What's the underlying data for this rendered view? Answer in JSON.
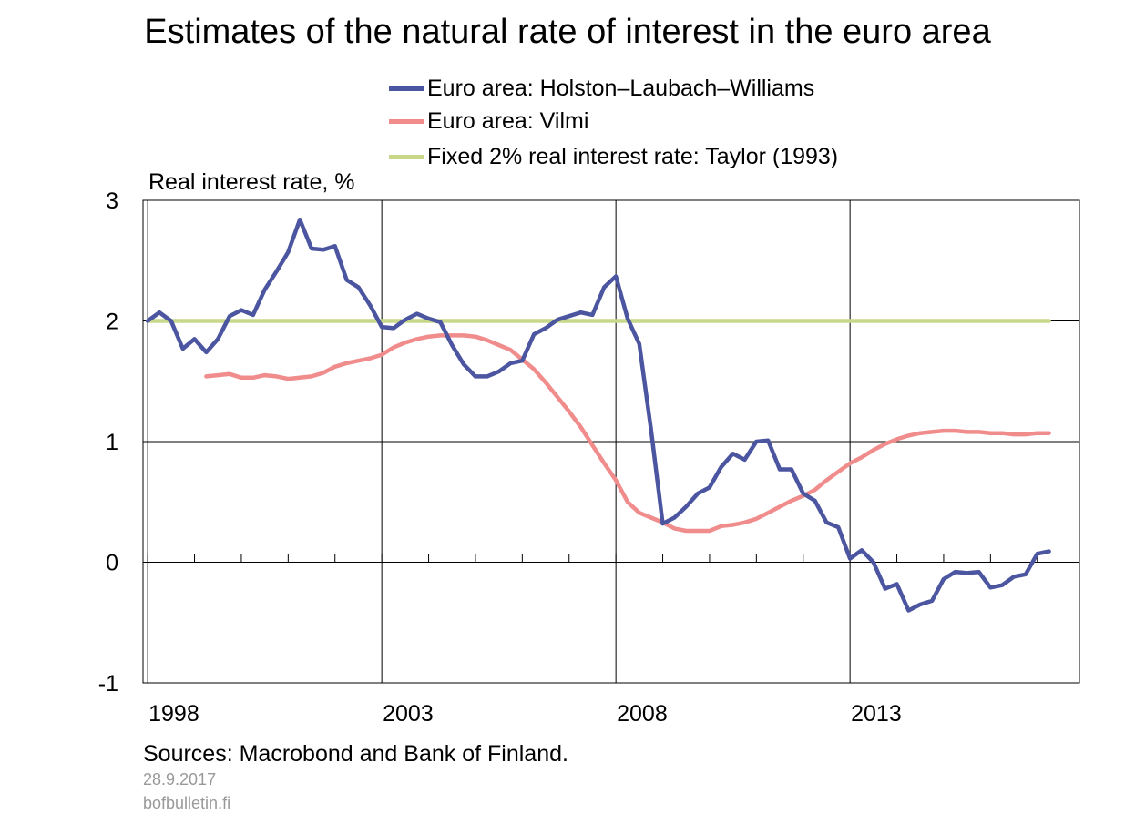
{
  "chart_data": {
    "type": "line",
    "title": "Estimates of the natural rate of interest in the euro area",
    "ylabel": "Real interest rate, %",
    "ylim": [
      -1,
      3
    ],
    "yticks": [
      3,
      2,
      1,
      0,
      -1
    ],
    "xlim": [
      1997.9,
      2017.9
    ],
    "xticks": [
      1998,
      2003,
      2008,
      2013
    ],
    "grid": true,
    "legend_position": "top",
    "series": [
      {
        "name": "Euro area: Holston–Laubach–Williams",
        "color": "#4b55a0",
        "x": [
          1998.0,
          1998.25,
          1998.5,
          1998.75,
          1999.0,
          1999.25,
          1999.5,
          1999.75,
          2000.0,
          2000.25,
          2000.5,
          2000.75,
          2001.0,
          2001.25,
          2001.5,
          2001.75,
          2002.0,
          2002.25,
          2002.5,
          2002.75,
          2003.0,
          2003.25,
          2003.5,
          2003.75,
          2004.0,
          2004.25,
          2004.5,
          2004.75,
          2005.0,
          2005.25,
          2005.5,
          2005.75,
          2006.0,
          2006.25,
          2006.5,
          2006.75,
          2007.0,
          2007.25,
          2007.5,
          2007.75,
          2008.0,
          2008.25,
          2008.5,
          2008.75,
          2009.0,
          2009.25,
          2009.5,
          2009.75,
          2010.0,
          2010.25,
          2010.5,
          2010.75,
          2011.0,
          2011.25,
          2011.5,
          2011.75,
          2012.0,
          2012.25,
          2012.5,
          2012.75,
          2013.0,
          2013.25,
          2013.5,
          2013.75,
          2014.0,
          2014.25,
          2014.5,
          2014.75,
          2015.0,
          2015.25,
          2015.5,
          2015.75,
          2016.0,
          2016.25,
          2016.5,
          2016.75,
          2017.0,
          2017.25
        ],
        "values": [
          2.0,
          2.07,
          2.0,
          1.77,
          1.85,
          1.74,
          1.85,
          2.04,
          2.09,
          2.05,
          2.26,
          2.41,
          2.57,
          2.84,
          2.6,
          2.59,
          2.62,
          2.34,
          2.28,
          2.13,
          1.95,
          1.94,
          2.01,
          2.06,
          2.02,
          1.99,
          1.8,
          1.64,
          1.54,
          1.54,
          1.58,
          1.65,
          1.67,
          1.89,
          1.94,
          2.01,
          2.04,
          2.07,
          2.05,
          2.28,
          2.37,
          2.02,
          1.81,
          1.1,
          0.32,
          0.37,
          0.46,
          0.57,
          0.62,
          0.79,
          0.9,
          0.85,
          1.0,
          1.01,
          0.77,
          0.77,
          0.57,
          0.51,
          0.33,
          0.29,
          0.03,
          0.1,
          0.0,
          -0.22,
          -0.18,
          -0.4,
          -0.35,
          -0.32,
          -0.14,
          -0.08,
          -0.09,
          -0.08,
          -0.21,
          -0.19,
          -0.12,
          -0.1,
          0.07,
          0.09
        ]
      },
      {
        "name": "Euro area: Vilmi",
        "color": "#f08c8c",
        "x": [
          1999.25,
          1999.5,
          1999.75,
          2000.0,
          2000.25,
          2000.5,
          2000.75,
          2001.0,
          2001.25,
          2001.5,
          2001.75,
          2002.0,
          2002.25,
          2002.5,
          2002.75,
          2003.0,
          2003.25,
          2003.5,
          2003.75,
          2004.0,
          2004.25,
          2004.5,
          2004.75,
          2005.0,
          2005.25,
          2005.5,
          2005.75,
          2006.0,
          2006.25,
          2006.5,
          2006.75,
          2007.0,
          2007.25,
          2007.5,
          2007.75,
          2008.0,
          2008.25,
          2008.5,
          2008.75,
          2009.0,
          2009.25,
          2009.5,
          2009.75,
          2010.0,
          2010.25,
          2010.5,
          2010.75,
          2011.0,
          2011.25,
          2011.5,
          2011.75,
          2012.0,
          2012.25,
          2012.5,
          2012.75,
          2013.0,
          2013.25,
          2013.5,
          2013.75,
          2014.0,
          2014.25,
          2014.5,
          2014.75,
          2015.0,
          2015.25,
          2015.5,
          2015.75,
          2016.0,
          2016.25,
          2016.5,
          2016.75,
          2017.0,
          2017.25
        ],
        "values": [
          1.54,
          1.55,
          1.56,
          1.53,
          1.53,
          1.55,
          1.54,
          1.52,
          1.53,
          1.54,
          1.57,
          1.62,
          1.65,
          1.67,
          1.69,
          1.72,
          1.78,
          1.82,
          1.85,
          1.87,
          1.88,
          1.88,
          1.88,
          1.87,
          1.84,
          1.8,
          1.76,
          1.68,
          1.6,
          1.49,
          1.37,
          1.25,
          1.12,
          0.97,
          0.82,
          0.68,
          0.5,
          0.41,
          0.37,
          0.33,
          0.28,
          0.26,
          0.26,
          0.26,
          0.3,
          0.31,
          0.33,
          0.36,
          0.41,
          0.46,
          0.51,
          0.55,
          0.6,
          0.68,
          0.75,
          0.82,
          0.87,
          0.93,
          0.98,
          1.02,
          1.05,
          1.07,
          1.08,
          1.09,
          1.09,
          1.08,
          1.08,
          1.07,
          1.07,
          1.06,
          1.06,
          1.07,
          1.07
        ]
      },
      {
        "name": "Fixed 2% real interest rate: Taylor (1993)",
        "color": "#c8d88a",
        "x": [
          1998.0,
          2017.25
        ],
        "values": [
          2.0,
          2.0
        ]
      }
    ]
  },
  "footer": {
    "sources": "Sources: Macrobond and Bank of Finland.",
    "date": "28.9.2017",
    "site": "bofbulletin.fi"
  }
}
